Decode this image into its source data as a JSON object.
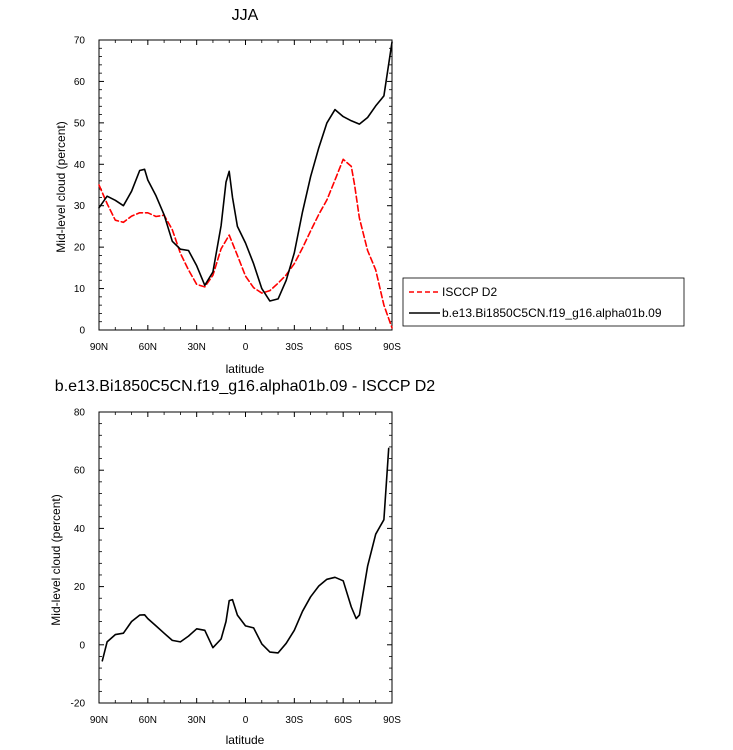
{
  "chart_data": [
    {
      "type": "line",
      "title": "JJA",
      "xlabel": "latitude",
      "ylabel": "Mid-level cloud (percent)",
      "xlim": [
        90,
        -90
      ],
      "ylim": [
        0,
        70
      ],
      "x_tick_values": [
        90,
        60,
        30,
        0,
        -30,
        -60,
        -90
      ],
      "x_tick_labels": [
        "90N",
        "60N",
        "30N",
        "0",
        "30S",
        "60S",
        "90S"
      ],
      "y_ticks": [
        0,
        10,
        20,
        30,
        40,
        50,
        60,
        70
      ],
      "legend_placement": "right",
      "series": [
        {
          "name": "ISCCP D2",
          "color": "#ff0000",
          "dash": "dashed",
          "x": [
            90,
            85,
            80,
            75,
            70,
            65,
            60,
            55,
            50,
            45,
            40,
            35,
            30,
            25,
            20,
            15,
            10,
            5,
            0,
            -5,
            -10,
            -15,
            -20,
            -25,
            -30,
            -35,
            -40,
            -45,
            -50,
            -55,
            -60,
            -65,
            -67,
            -70,
            -75,
            -80,
            -85,
            -90
          ],
          "y": [
            35,
            30.5,
            26.5,
            26,
            27.5,
            28.3,
            28.3,
            27.4,
            27.7,
            24.2,
            18.5,
            14.5,
            11,
            10.4,
            13.2,
            19.6,
            22.9,
            18,
            13,
            10.2,
            8.9,
            9.5,
            11.3,
            13.3,
            16,
            19.8,
            23.9,
            27.9,
            31.4,
            36.2,
            41.2,
            39.5,
            35,
            27,
            19.2,
            14.5,
            6,
            0.5
          ]
        },
        {
          "name": "b.e13.Bi1850C5CN.f19_g16.alpha01b.09",
          "color": "#000000",
          "dash": "solid",
          "x": [
            90,
            85,
            80,
            75,
            70,
            65,
            62,
            60,
            55,
            50,
            45,
            40,
            35,
            30,
            25,
            20,
            15,
            12,
            10,
            8,
            5,
            0,
            -5,
            -10,
            -15,
            -20,
            -25,
            -30,
            -35,
            -40,
            -45,
            -50,
            -55,
            -60,
            -65,
            -70,
            -75,
            -80,
            -85,
            -90
          ],
          "y": [
            29.5,
            32.3,
            31.3,
            30,
            33.5,
            38.5,
            38.8,
            36.2,
            32.4,
            27.8,
            21.4,
            19.5,
            19.2,
            15.5,
            10.8,
            14,
            25.2,
            35.7,
            38.3,
            32,
            25,
            21,
            16,
            10,
            7,
            7.5,
            12,
            18.6,
            28.5,
            37,
            44,
            50,
            53.2,
            51.5,
            50.5,
            49.7,
            51.3,
            54.1,
            56.5,
            69.5
          ]
        }
      ]
    },
    {
      "type": "line",
      "title": "b.e13.Bi1850C5CN.f19_g16.alpha01b.09 - ISCCP D2",
      "xlabel": "latitude",
      "ylabel": "Mid-level cloud (percent)",
      "xlim": [
        90,
        -90
      ],
      "ylim": [
        -20,
        80
      ],
      "x_tick_values": [
        90,
        60,
        30,
        0,
        -30,
        -60,
        -90
      ],
      "x_tick_labels": [
        "90N",
        "60N",
        "30N",
        "0",
        "30S",
        "60S",
        "90S"
      ],
      "y_ticks": [
        -20,
        0,
        20,
        40,
        60,
        80
      ],
      "series": [
        {
          "color": "#000000",
          "dash": "solid",
          "x": [
            88,
            85,
            80,
            75,
            70,
            65,
            62,
            60,
            55,
            50,
            45,
            40,
            35,
            30,
            25,
            20,
            15,
            12,
            10,
            8,
            5,
            0,
            -5,
            -10,
            -15,
            -20,
            -25,
            -30,
            -35,
            -40,
            -45,
            -50,
            -55,
            -60,
            -65,
            -68,
            -70,
            -75,
            -80,
            -85,
            -88
          ],
          "y": [
            -5.5,
            1,
            3.5,
            4,
            8,
            10.2,
            10.3,
            9,
            6.5,
            4,
            1.5,
            1,
            3,
            5.5,
            5,
            -1,
            2,
            8,
            15.2,
            15.5,
            10.2,
            6.5,
            5.8,
            0.3,
            -2.5,
            -2.8,
            0.5,
            5,
            11.5,
            16.5,
            20.2,
            22.5,
            23.2,
            22,
            13,
            9,
            10.2,
            27,
            38,
            43,
            67.5
          ]
        }
      ]
    }
  ]
}
